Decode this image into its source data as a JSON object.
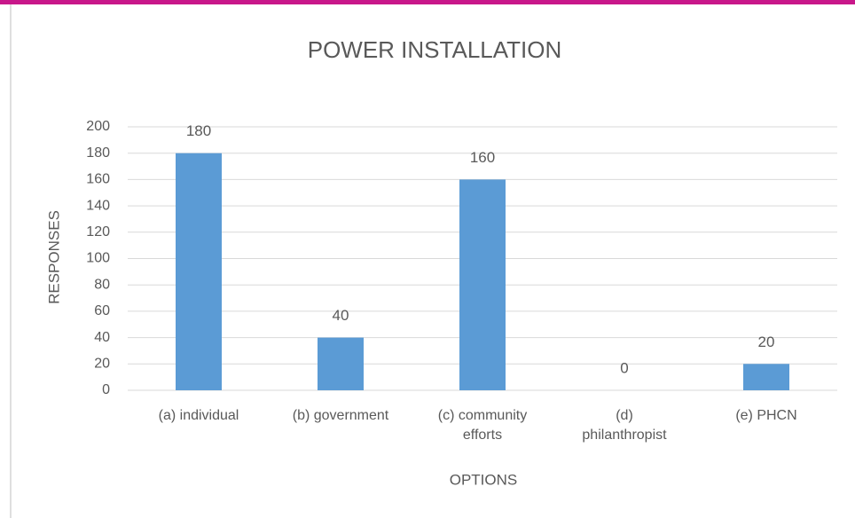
{
  "chart_data": {
    "type": "bar",
    "title": "POWER INSTALLATION",
    "x_label": "OPTIONS",
    "y_label": "RESPONSES",
    "categories": [
      "(a) individual",
      "(b) government",
      "(c) community\nefforts",
      "(d)\nphilanthropist",
      "(e) PHCN"
    ],
    "values": [
      180,
      40,
      160,
      0,
      20
    ],
    "color": "#5b9bd5",
    "ylim": [
      0,
      200
    ],
    "yticks": [
      0,
      20,
      40,
      60,
      80,
      100,
      120,
      140,
      160,
      180,
      200
    ],
    "grid": true
  }
}
